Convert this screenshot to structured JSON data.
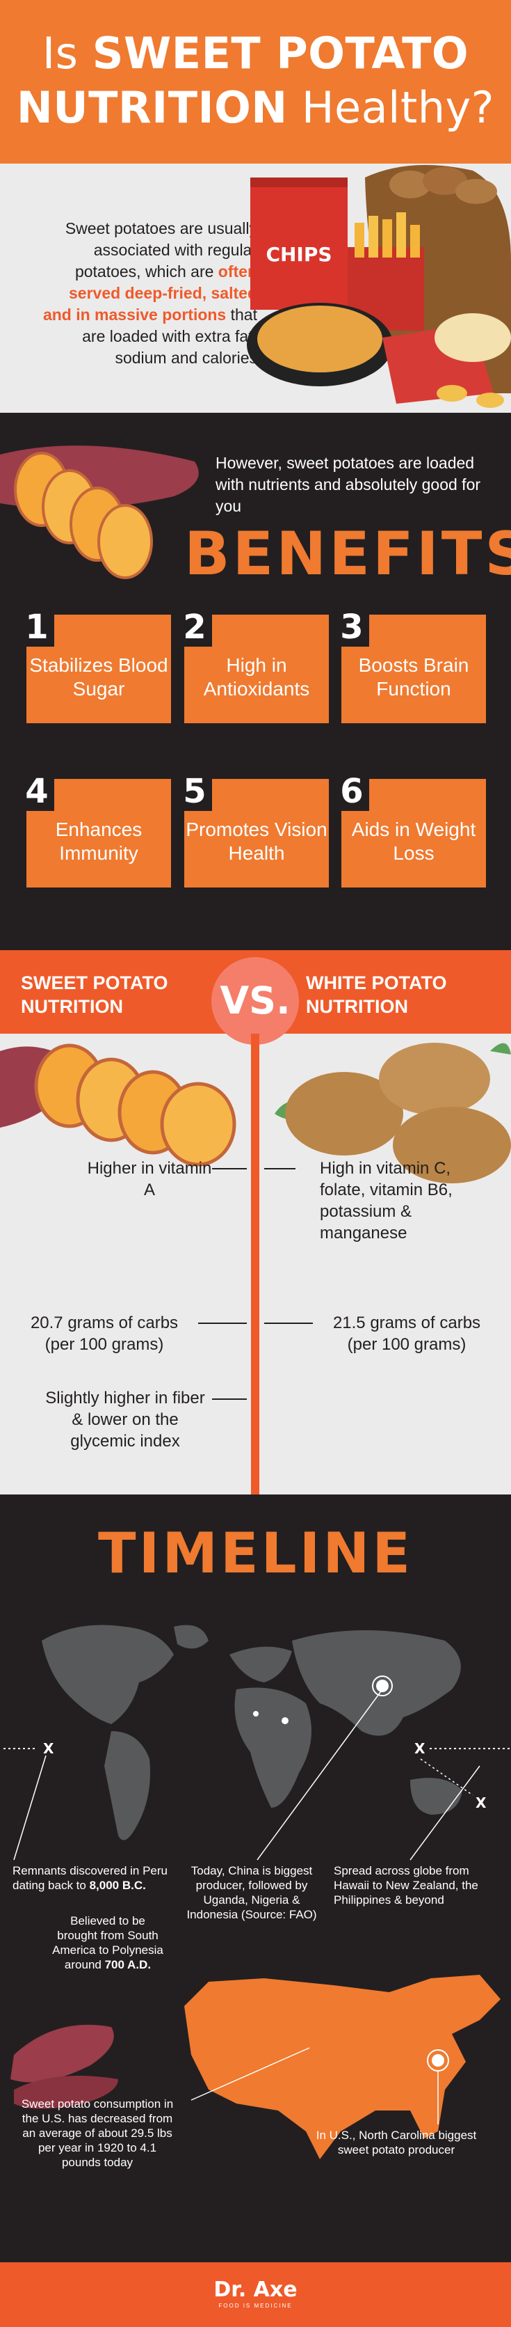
{
  "header": {
    "title_line1_pre": "Is ",
    "title_line1_bold": "SWEET POTATO",
    "title_line2_bold": "NUTRITION",
    "title_line2_post": " Healthy?"
  },
  "intro": {
    "text_pre": "Sweet potatoes are usually associated with regular potatoes, which are ",
    "text_highlight": "often served deep-fried, salted and in massive portions",
    "text_post": " that are loaded with extra fat, sodium and calories",
    "chips_label": "CHIPS"
  },
  "benefits": {
    "subtitle": "However, sweet potatoes are loaded with nutrients and absolutely good for you",
    "title": "BENEFITS",
    "items": [
      {
        "num": "1",
        "label": "Stabilizes Blood Sugar"
      },
      {
        "num": "2",
        "label": "High in Antioxidants"
      },
      {
        "num": "3",
        "label": "Boosts Brain Function"
      },
      {
        "num": "4",
        "label": "Enhances Immunity"
      },
      {
        "num": "5",
        "label": "Promotes Vision Health"
      },
      {
        "num": "6",
        "label": "Aids in Weight Loss"
      }
    ]
  },
  "comparison": {
    "left_title": "SWEET POTATO NUTRITION",
    "vs": "VS.",
    "right_title": "WHITE POTATO NUTRITION",
    "left_1": "Higher in vitamin A",
    "right_1": "High in vitamin C, folate, vitamin B6, potassium & manganese",
    "left_2": "20.7 grams of carbs (per 100 grams)",
    "right_2": "21.5 grams of carbs (per 100 grams)",
    "left_3": "Slightly higher in fiber & lower on the glycemic index"
  },
  "timeline": {
    "title": "TIMELINE",
    "marker_x": "X",
    "peru_pre": "Remnants discovered in Peru dating back to ",
    "peru_bold": "8,000 B.C.",
    "polynesia_pre": "Believed to be brought from South America to Polynesia around ",
    "polynesia_bold": "700 A.D.",
    "china": "Today, China is biggest producer, followed by Uganda, Nigeria & Indonesia (Source: FAO)",
    "globe": "Spread across globe from Hawaii to New Zealand, the Philippines & beyond",
    "us_consumption": "Sweet potato consumption in the U.S. has decreased from an average of about 29.5 lbs per year in 1920 to 4.1 pounds today",
    "nc": "In U.S., North Carolina biggest sweet potato producer"
  },
  "footer": {
    "logo": "Dr. Axe",
    "tagline": "FOOD IS MEDICINE"
  },
  "colors": {
    "orange": "#ef7a30",
    "red_orange": "#ef5a2a",
    "dark": "#231f20",
    "light_gray": "#ebebeb"
  }
}
